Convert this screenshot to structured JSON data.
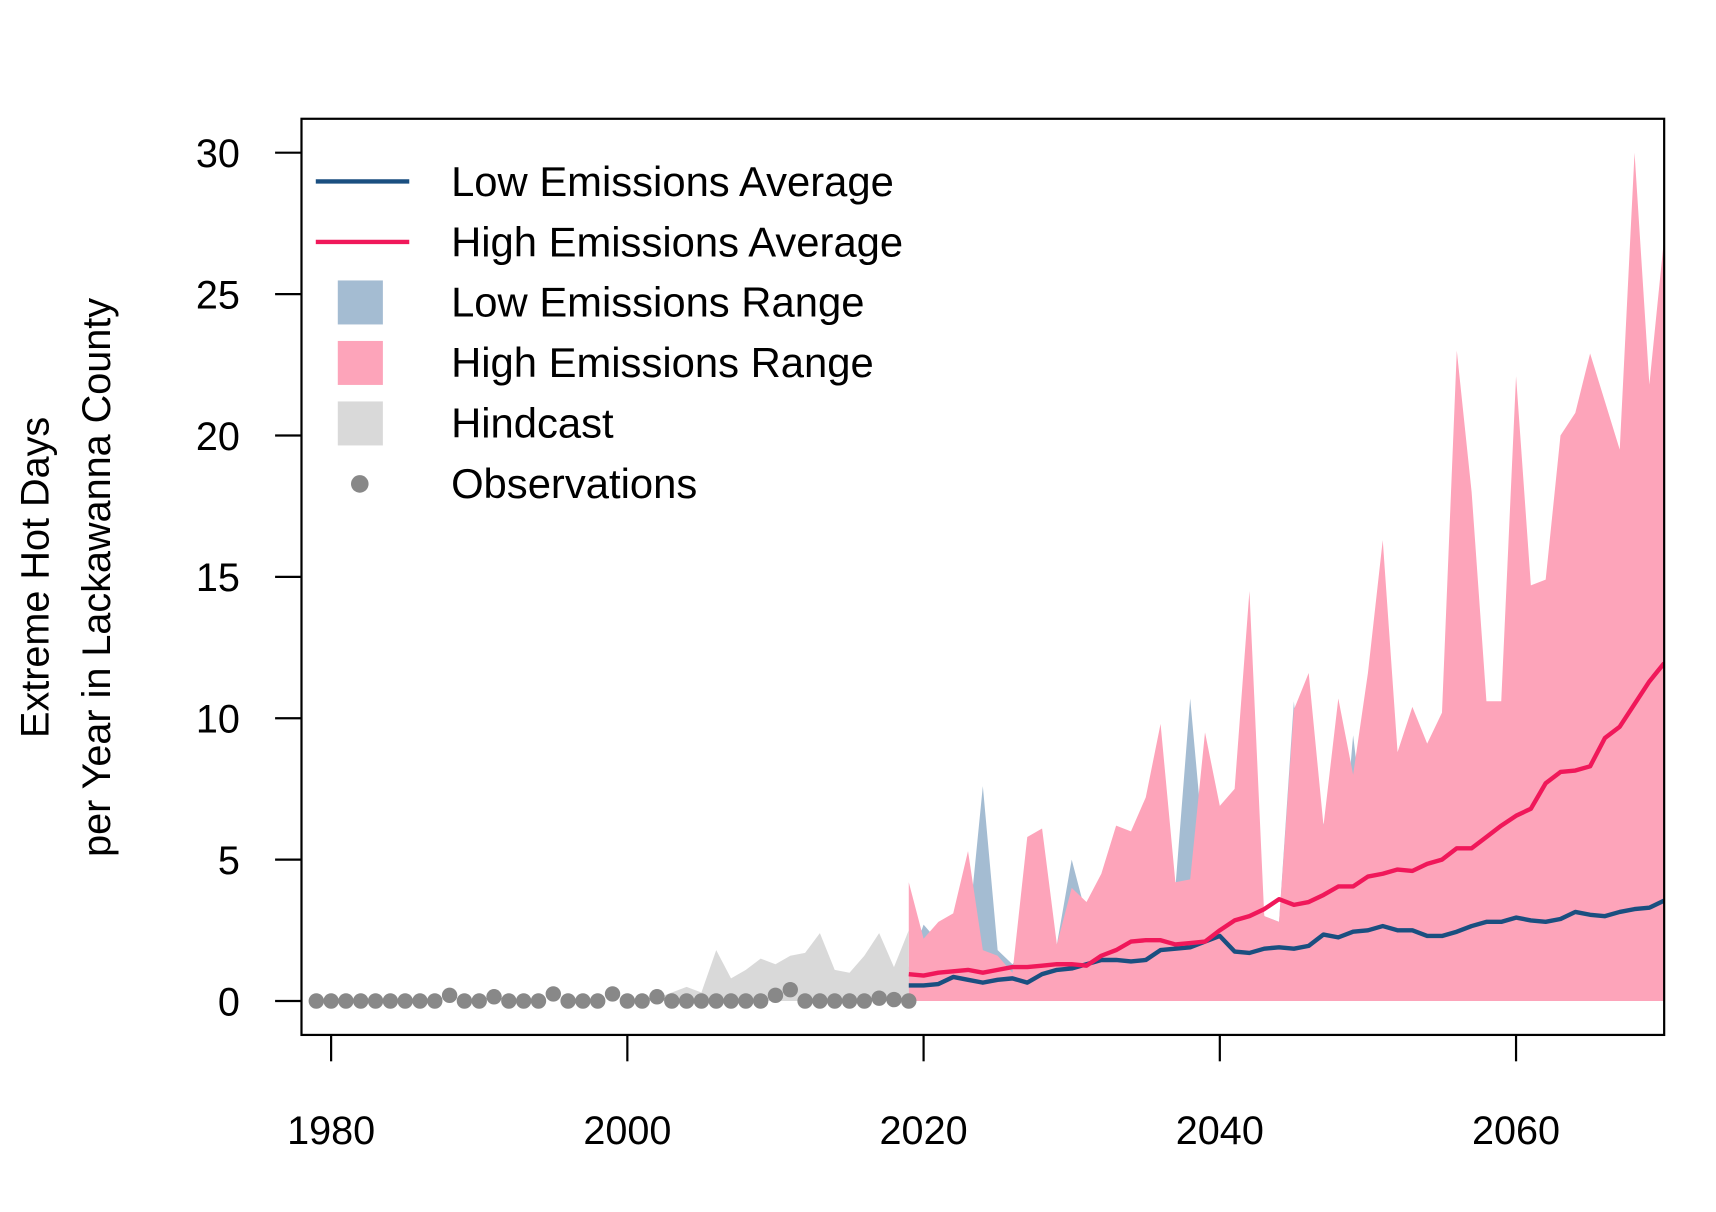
{
  "chart_data": {
    "type": "line",
    "ylabel": [
      "Extreme Hot Days",
      "per Year in Lackawanna County"
    ],
    "xlim": [
      1978,
      2070
    ],
    "ylim": [
      -1.2,
      31.2
    ],
    "xticks": [
      1980,
      2000,
      2020,
      2040,
      2060
    ],
    "yticks": [
      0,
      5,
      10,
      15,
      20,
      25,
      30
    ],
    "legend": "top-left",
    "series": [
      {
        "name": "Low Emissions Average",
        "kind": "line",
        "color": "#1a4f80",
        "x": [
          2019,
          2020,
          2021,
          2022,
          2023,
          2024,
          2025,
          2026,
          2027,
          2028,
          2029,
          2030,
          2031,
          2032,
          2033,
          2034,
          2035,
          2036,
          2037,
          2038,
          2039,
          2040,
          2041,
          2042,
          2043,
          2044,
          2045,
          2046,
          2047,
          2048,
          2049,
          2050,
          2051,
          2052,
          2053,
          2054,
          2055,
          2056,
          2057,
          2058,
          2059,
          2060,
          2061,
          2062,
          2063,
          2064,
          2065,
          2066,
          2067,
          2068,
          2069,
          2070
        ],
        "values": [
          0.55,
          0.55,
          0.6,
          0.85,
          0.75,
          0.65,
          0.75,
          0.8,
          0.65,
          0.95,
          1.1,
          1.15,
          1.3,
          1.45,
          1.45,
          1.4,
          1.45,
          1.8,
          1.85,
          1.9,
          2.1,
          2.3,
          1.75,
          1.7,
          1.85,
          1.9,
          1.85,
          1.95,
          2.35,
          2.25,
          2.45,
          2.5,
          2.65,
          2.5,
          2.5,
          2.3,
          2.3,
          2.45,
          2.65,
          2.8,
          2.8,
          2.95,
          2.85,
          2.8,
          2.9,
          3.15,
          3.05,
          3.0,
          3.15,
          3.25,
          3.3,
          3.55
        ]
      },
      {
        "name": "High Emissions Average",
        "kind": "line",
        "color": "#f0185a",
        "x": [
          2019,
          2020,
          2021,
          2022,
          2023,
          2024,
          2025,
          2026,
          2027,
          2028,
          2029,
          2030,
          2031,
          2032,
          2033,
          2034,
          2035,
          2036,
          2037,
          2038,
          2039,
          2040,
          2041,
          2042,
          2043,
          2044,
          2045,
          2046,
          2047,
          2048,
          2049,
          2050,
          2051,
          2052,
          2053,
          2054,
          2055,
          2056,
          2057,
          2058,
          2059,
          2060,
          2061,
          2062,
          2063,
          2064,
          2065,
          2066,
          2067,
          2068,
          2069,
          2070
        ],
        "values": [
          0.95,
          0.9,
          1.0,
          1.05,
          1.1,
          1.0,
          1.1,
          1.2,
          1.2,
          1.25,
          1.3,
          1.3,
          1.25,
          1.6,
          1.8,
          2.1,
          2.15,
          2.15,
          2.0,
          2.05,
          2.1,
          2.5,
          2.85,
          3.0,
          3.25,
          3.6,
          3.4,
          3.5,
          3.75,
          4.05,
          4.05,
          4.4,
          4.5,
          4.65,
          4.6,
          4.85,
          5.0,
          5.4,
          5.4,
          5.8,
          6.2,
          6.55,
          6.8,
          7.7,
          8.1,
          8.15,
          8.3,
          9.3,
          9.7,
          10.5,
          11.3,
          11.95
        ]
      },
      {
        "name": "Low Emissions Range",
        "kind": "band",
        "color": "#4a7aa5",
        "opacity": 0.5,
        "x": [
          2019,
          2020,
          2021,
          2022,
          2023,
          2024,
          2025,
          2026,
          2027,
          2028,
          2029,
          2030,
          2031,
          2032,
          2033,
          2034,
          2035,
          2036,
          2037,
          2038,
          2039,
          2040,
          2041,
          2042,
          2043,
          2044,
          2045,
          2046,
          2047,
          2048,
          2049,
          2050,
          2051,
          2052,
          2053,
          2054,
          2055,
          2056,
          2057,
          2058,
          2059,
          2060,
          2061,
          2062,
          2063,
          2064,
          2065,
          2066,
          2067,
          2068,
          2069,
          2070
        ],
        "lower": [
          0,
          0,
          0,
          0,
          0,
          0,
          0,
          0,
          0,
          0,
          0,
          0,
          0,
          0,
          0,
          0,
          0,
          0,
          0,
          0,
          0,
          0,
          0,
          0,
          0,
          0,
          0,
          0,
          0,
          0,
          0,
          0,
          0,
          0,
          0,
          0,
          0,
          0,
          0,
          0,
          0,
          0,
          0,
          0,
          0.3,
          0.4,
          0,
          0.1,
          0,
          0,
          0.05,
          0
        ],
        "values": [
          1.2,
          2.7,
          2.1,
          1.3,
          2.3,
          7.6,
          1.8,
          1.3,
          2.0,
          2.9,
          2.0,
          5.0,
          3.0,
          4.0,
          5.4,
          5.8,
          5.8,
          3.2,
          4.0,
          10.7,
          4.9,
          4.9,
          4.6,
          7.3,
          3.0,
          2.8,
          10.6,
          4.5,
          6.3,
          3.3,
          9.4,
          4.9,
          6.2,
          7.6,
          4.8,
          5.5,
          8.7,
          4.5,
          6.2,
          10.4,
          9.8,
          5.0,
          5.5,
          8.0,
          9.5,
          8.6,
          6.8,
          12.0,
          5.3,
          8.0,
          13.0,
          9.0
        ]
      },
      {
        "name": "High Emissions Range",
        "kind": "band",
        "color": "#fda4ba",
        "opacity": 1,
        "x": [
          2019,
          2020,
          2021,
          2022,
          2023,
          2024,
          2025,
          2026,
          2027,
          2028,
          2029,
          2030,
          2031,
          2032,
          2033,
          2034,
          2035,
          2036,
          2037,
          2038,
          2039,
          2040,
          2041,
          2042,
          2043,
          2044,
          2045,
          2046,
          2047,
          2048,
          2049,
          2050,
          2051,
          2052,
          2053,
          2054,
          2055,
          2056,
          2057,
          2058,
          2059,
          2060,
          2061,
          2062,
          2063,
          2064,
          2065,
          2066,
          2067,
          2068,
          2069,
          2070
        ],
        "lower": [
          0,
          0,
          0,
          0,
          0,
          0,
          0,
          0,
          0,
          0,
          0,
          0,
          0,
          0,
          0,
          0,
          0,
          0,
          0,
          0,
          0,
          0,
          0,
          0,
          0,
          0,
          0,
          0,
          0,
          0,
          0,
          0,
          0,
          0,
          0,
          0,
          0,
          0,
          0,
          0,
          0,
          0,
          0,
          0,
          0,
          0,
          0,
          0,
          0,
          0,
          0,
          0
        ],
        "values": [
          4.2,
          2.2,
          2.8,
          3.1,
          5.3,
          1.8,
          1.6,
          1.0,
          5.8,
          6.1,
          2.0,
          4.0,
          3.5,
          4.5,
          6.2,
          6.0,
          7.2,
          9.8,
          4.2,
          4.3,
          9.5,
          6.9,
          7.5,
          14.5,
          3.0,
          2.8,
          10.3,
          11.6,
          6.2,
          10.7,
          8.0,
          11.6,
          16.3,
          8.8,
          10.4,
          9.1,
          10.2,
          23.0,
          18.0,
          10.6,
          10.6,
          22.1,
          14.7,
          14.9,
          20.0,
          20.8,
          22.9,
          21.2,
          19.5,
          30.0,
          21.8,
          27.0
        ]
      },
      {
        "name": "Hindcast",
        "kind": "band",
        "color": "#d9d9d9",
        "opacity": 1,
        "x": [
          1979,
          1980,
          1981,
          1982,
          1983,
          1984,
          1985,
          1986,
          1987,
          1988,
          1989,
          1990,
          1991,
          1992,
          1993,
          1994,
          1995,
          1996,
          1997,
          1998,
          1999,
          2000,
          2001,
          2002,
          2003,
          2004,
          2005,
          2006,
          2007,
          2008,
          2009,
          2010,
          2011,
          2012,
          2013,
          2014,
          2015,
          2016,
          2017,
          2018,
          2019
        ],
        "lower": [
          0,
          0,
          0,
          0,
          0,
          0,
          0,
          0,
          0,
          0,
          0,
          0,
          0,
          0,
          0,
          0,
          0,
          0,
          0,
          0,
          0,
          0,
          0,
          0,
          0,
          0,
          0,
          0,
          0,
          0,
          0,
          0,
          0,
          0,
          0,
          0,
          0,
          0,
          0,
          0,
          0
        ],
        "values": [
          0,
          0,
          0,
          0,
          0,
          0,
          0,
          0,
          0,
          0,
          0,
          0,
          0,
          0,
          0,
          0,
          0,
          0,
          0,
          0,
          0,
          0,
          0,
          0.1,
          0.3,
          0.5,
          0.3,
          1.8,
          0.8,
          1.1,
          1.5,
          1.3,
          1.6,
          1.7,
          2.4,
          1.1,
          1.0,
          1.6,
          2.4,
          1.2,
          2.5
        ]
      },
      {
        "name": "Observations",
        "kind": "points",
        "color": "#888888",
        "x": [
          1979,
          1980,
          1981,
          1982,
          1983,
          1984,
          1985,
          1986,
          1987,
          1988,
          1989,
          1990,
          1991,
          1992,
          1993,
          1994,
          1995,
          1996,
          1997,
          1998,
          1999,
          2000,
          2001,
          2002,
          2003,
          2004,
          2005,
          2006,
          2007,
          2008,
          2009,
          2010,
          2011,
          2012,
          2013,
          2014,
          2015,
          2016,
          2017,
          2018,
          2019
        ],
        "values": [
          0,
          0,
          0,
          0,
          0,
          0,
          0,
          0,
          0,
          0.2,
          0,
          0,
          0.15,
          0,
          0,
          0,
          0.25,
          0,
          0,
          0,
          0.25,
          0,
          0,
          0.15,
          0,
          0,
          0,
          0,
          0,
          0,
          0,
          0.2,
          0.4,
          0,
          0,
          0,
          0,
          0,
          0.1,
          0.05,
          0
        ]
      }
    ]
  }
}
